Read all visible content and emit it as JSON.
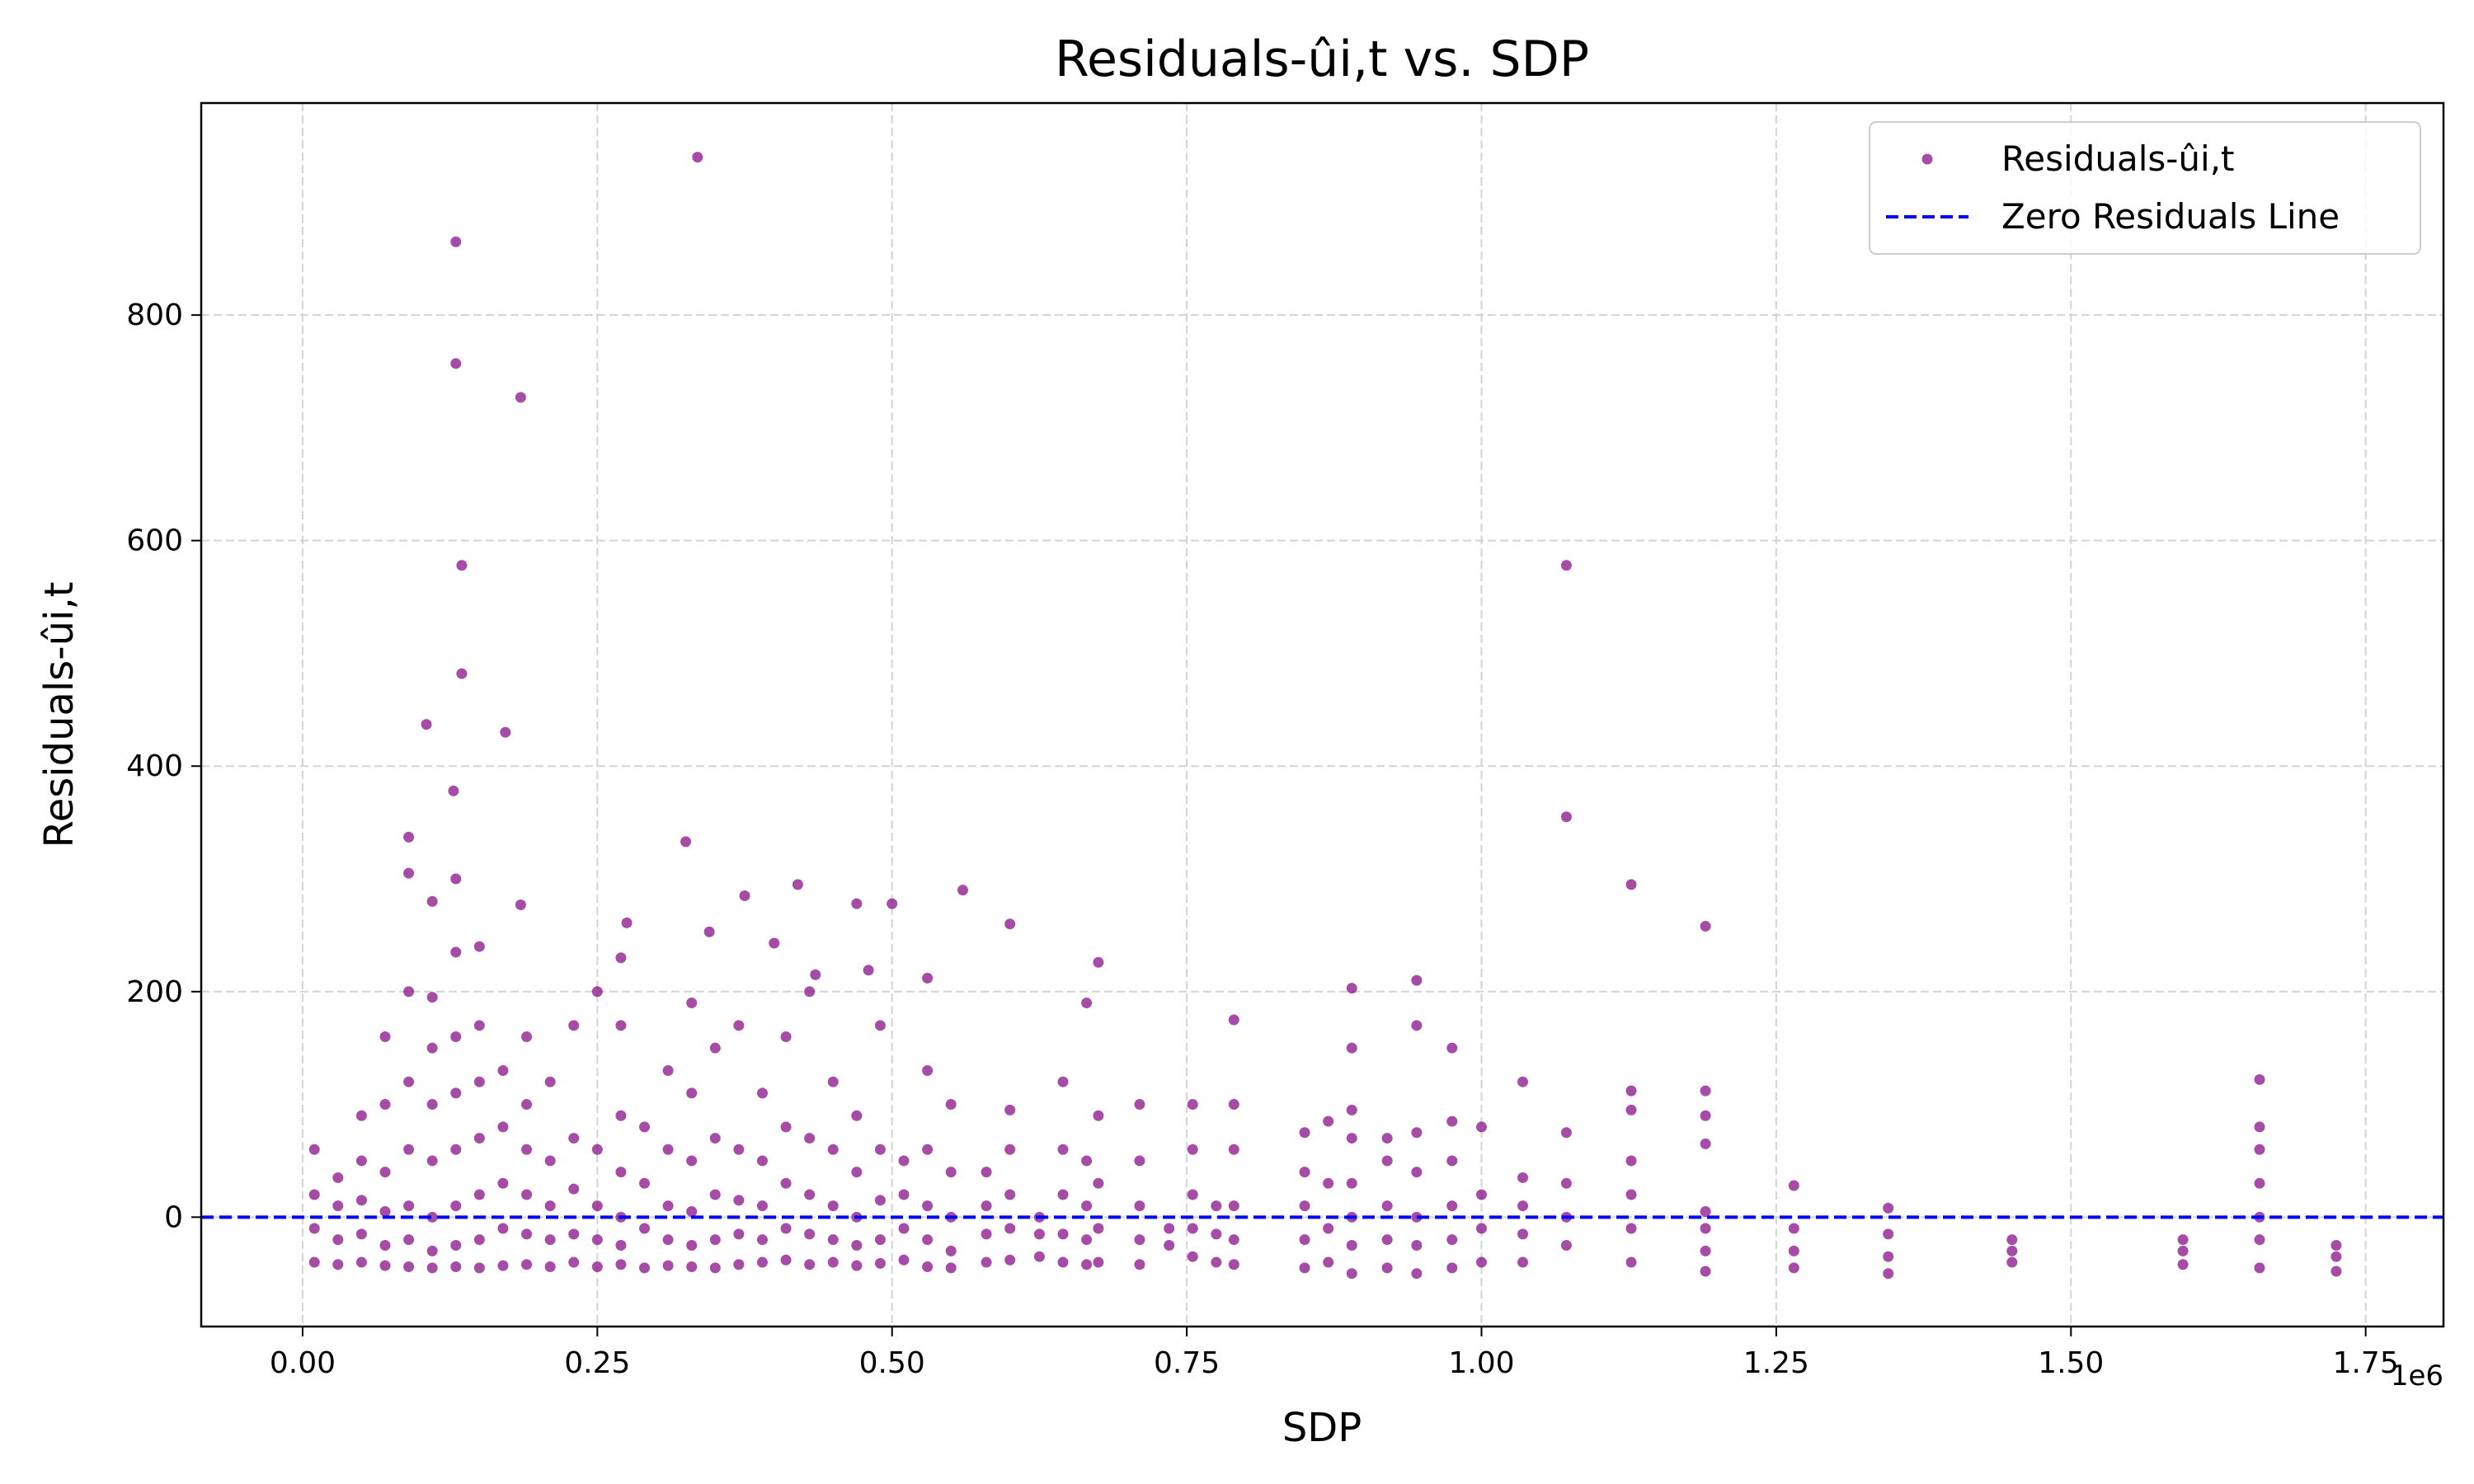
{
  "chart_data": {
    "type": "scatter",
    "title": "Residuals-ûi,t vs. SDP",
    "x_label": "SDP",
    "y_label": "Residuals-ûi,t",
    "x_offset_label": "1e6",
    "xlim": [
      -86000,
      1816000
    ],
    "ylim": [
      -97,
      988
    ],
    "xticks": [
      {
        "value": 0,
        "label": "0.00"
      },
      {
        "value": 250000,
        "label": "0.25"
      },
      {
        "value": 500000,
        "label": "0.50"
      },
      {
        "value": 750000,
        "label": "0.75"
      },
      {
        "value": 1000000,
        "label": "1.00"
      },
      {
        "value": 1250000,
        "label": "1.25"
      },
      {
        "value": 1500000,
        "label": "1.50"
      },
      {
        "value": 1750000,
        "label": "1.75"
      }
    ],
    "yticks": [
      0,
      200,
      400,
      600,
      800
    ],
    "grid": true,
    "legend": "upper right",
    "hlines": [
      {
        "name": "Zero Residuals Line",
        "y": 0,
        "color": "#0000ff",
        "style": "dashed"
      }
    ],
    "x": [
      335000,
      130000,
      130000,
      185000,
      135000,
      1072000,
      135000,
      105000,
      172000,
      128000,
      1072000,
      90000,
      325000,
      1127000,
      420000,
      560000,
      375000,
      470000,
      500000,
      185000,
      275000,
      600000,
      1190000,
      345000,
      400000,
      675000,
      480000,
      530000,
      435000,
      890000,
      945000,
      1660000,
      1035000,
      1127000,
      1190000,
      790000,
      665000,
      890000,
      975000,
      945000,
      1265000,
      1345000,
      10000,
      10000,
      10000,
      10000,
      30000,
      30000,
      30000,
      30000,
      50000,
      50000,
      50000,
      50000,
      50000,
      70000,
      70000,
      70000,
      70000,
      70000,
      70000,
      90000,
      90000,
      90000,
      90000,
      90000,
      90000,
      90000,
      110000,
      110000,
      110000,
      110000,
      110000,
      110000,
      110000,
      110000,
      130000,
      130000,
      130000,
      130000,
      130000,
      130000,
      130000,
      130000,
      150000,
      150000,
      150000,
      150000,
      150000,
      150000,
      150000,
      170000,
      170000,
      170000,
      170000,
      170000,
      190000,
      190000,
      190000,
      190000,
      190000,
      190000,
      210000,
      210000,
      210000,
      210000,
      210000,
      230000,
      230000,
      230000,
      230000,
      230000,
      250000,
      250000,
      250000,
      250000,
      250000,
      270000,
      270000,
      270000,
      270000,
      270000,
      270000,
      270000,
      290000,
      290000,
      290000,
      290000,
      310000,
      310000,
      310000,
      310000,
      310000,
      330000,
      330000,
      330000,
      330000,
      330000,
      330000,
      350000,
      350000,
      350000,
      350000,
      350000,
      370000,
      370000,
      370000,
      370000,
      370000,
      390000,
      390000,
      390000,
      390000,
      390000,
      410000,
      410000,
      410000,
      410000,
      410000,
      430000,
      430000,
      430000,
      430000,
      430000,
      450000,
      450000,
      450000,
      450000,
      450000,
      470000,
      470000,
      470000,
      470000,
      470000,
      490000,
      490000,
      490000,
      490000,
      490000,
      510000,
      510000,
      510000,
      510000,
      530000,
      530000,
      530000,
      530000,
      530000,
      550000,
      550000,
      550000,
      550000,
      550000,
      580000,
      580000,
      580000,
      580000,
      600000,
      600000,
      600000,
      600000,
      600000,
      625000,
      625000,
      625000,
      645000,
      645000,
      645000,
      645000,
      645000,
      665000,
      665000,
      665000,
      665000,
      675000,
      675000,
      675000,
      675000,
      710000,
      710000,
      710000,
      710000,
      710000,
      735000,
      735000,
      755000,
      755000,
      755000,
      755000,
      755000,
      775000,
      775000,
      775000,
      790000,
      790000,
      790000,
      790000,
      790000,
      850000,
      850000,
      850000,
      850000,
      850000,
      870000,
      870000,
      870000,
      870000,
      890000,
      890000,
      890000,
      890000,
      890000,
      890000,
      920000,
      920000,
      920000,
      920000,
      920000,
      945000,
      945000,
      945000,
      945000,
      945000,
      975000,
      975000,
      975000,
      975000,
      975000,
      1000000,
      1000000,
      1000000,
      1000000,
      1035000,
      1035000,
      1035000,
      1035000,
      1072000,
      1072000,
      1072000,
      1072000,
      1127000,
      1127000,
      1127000,
      1127000,
      1127000,
      1190000,
      1190000,
      1190000,
      1190000,
      1190000,
      1190000,
      1265000,
      1265000,
      1265000,
      1345000,
      1345000,
      1345000,
      1450000,
      1450000,
      1450000,
      1595000,
      1595000,
      1595000,
      1660000,
      1660000,
      1660000,
      1660000,
      1660000,
      1660000,
      1725000,
      1725000,
      1725000
    ],
    "series": [
      {
        "name": "Residuals-ûi,t",
        "color": "#800080",
        "values": [
          940,
          865,
          757,
          727,
          578,
          578,
          482,
          437,
          430,
          378,
          355,
          337,
          333,
          295,
          295,
          290,
          285,
          278,
          278,
          277,
          261,
          260,
          258,
          253,
          243,
          226,
          219,
          212,
          215,
          203,
          210,
          122,
          120,
          112,
          112,
          175,
          190,
          150,
          150,
          170,
          28,
          8,
          -40,
          -10,
          20,
          60,
          -42,
          -20,
          10,
          35,
          -40,
          -15,
          15,
          50,
          90,
          -43,
          -25,
          5,
          40,
          100,
          160,
          -44,
          -20,
          10,
          60,
          120,
          200,
          305,
          -45,
          -30,
          0,
          50,
          100,
          150,
          195,
          280,
          -44,
          -25,
          10,
          60,
          110,
          160,
          235,
          300,
          -45,
          -20,
          20,
          70,
          120,
          170,
          240,
          -43,
          -10,
          30,
          80,
          130,
          -42,
          -15,
          20,
          60,
          100,
          160,
          -44,
          -20,
          10,
          50,
          120,
          -40,
          -15,
          25,
          70,
          170,
          -44,
          -20,
          10,
          60,
          200,
          -42,
          -25,
          0,
          40,
          90,
          170,
          230,
          -45,
          -10,
          30,
          80,
          -43,
          -20,
          10,
          60,
          130,
          -44,
          -25,
          5,
          50,
          110,
          190,
          -45,
          -20,
          20,
          70,
          150,
          -42,
          -15,
          15,
          60,
          170,
          -40,
          -20,
          10,
          50,
          110,
          -38,
          -10,
          30,
          80,
          160,
          -42,
          -15,
          20,
          70,
          200,
          -40,
          -20,
          10,
          60,
          120,
          -43,
          -25,
          0,
          40,
          90,
          -41,
          -20,
          15,
          60,
          170,
          -38,
          -10,
          20,
          50,
          -44,
          -20,
          10,
          60,
          130,
          -45,
          -30,
          0,
          40,
          100,
          -40,
          -15,
          10,
          40,
          -38,
          -10,
          20,
          60,
          95,
          -35,
          -15,
          0,
          -40,
          -15,
          20,
          60,
          120,
          -42,
          -20,
          10,
          50,
          -40,
          -10,
          30,
          90,
          -42,
          -20,
          10,
          50,
          100,
          -25,
          -10,
          -35,
          -10,
          20,
          60,
          100,
          -40,
          -15,
          10,
          -42,
          -20,
          10,
          60,
          100,
          -45,
          -20,
          10,
          40,
          75,
          -40,
          -10,
          30,
          85,
          -50,
          -25,
          0,
          30,
          70,
          95,
          -45,
          -20,
          10,
          50,
          70,
          -50,
          -25,
          0,
          40,
          75,
          -45,
          -20,
          10,
          50,
          85,
          -40,
          -10,
          20,
          80,
          -40,
          -15,
          10,
          35,
          -25,
          0,
          30,
          75,
          -40,
          -10,
          20,
          50,
          95,
          -48,
          -30,
          -10,
          5,
          65,
          90,
          -45,
          -30,
          -10,
          -50,
          -35,
          -15,
          -40,
          -30,
          -20,
          -42,
          -30,
          -20,
          -45,
          -20,
          0,
          30,
          60,
          80,
          -48,
          -35,
          -25
        ]
      }
    ]
  }
}
